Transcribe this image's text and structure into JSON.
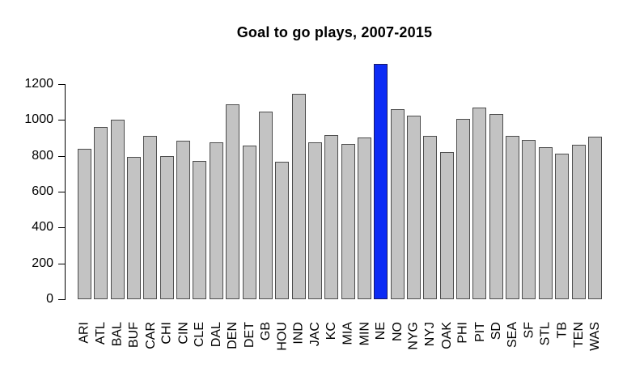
{
  "chart_data": {
    "type": "bar",
    "title": "Goal to go plays, 2007-2015",
    "categories": [
      "ARI",
      "ATL",
      "BAL",
      "BUF",
      "CAR",
      "CHI",
      "CIN",
      "CLE",
      "DAL",
      "DEN",
      "DET",
      "GB",
      "HOU",
      "IND",
      "JAC",
      "KC",
      "MIA",
      "MIN",
      "NE",
      "NO",
      "NYG",
      "NYJ",
      "OAK",
      "PHI",
      "PIT",
      "SD",
      "SEA",
      "SF",
      "STL",
      "TB",
      "TEN",
      "WAS"
    ],
    "values": [
      840,
      960,
      1000,
      795,
      910,
      800,
      885,
      770,
      875,
      1085,
      855,
      1045,
      765,
      1145,
      875,
      915,
      865,
      900,
      1315,
      1060,
      1025,
      910,
      820,
      1005,
      1070,
      1035,
      910,
      890,
      850,
      810,
      860,
      905
    ],
    "highlight_category": "NE",
    "highlight_index": 18,
    "yticks": [
      0,
      200,
      400,
      600,
      800,
      1000,
      1200
    ],
    "ylim": [
      0,
      1355
    ],
    "xlabel": "",
    "ylabel": "",
    "grid": false,
    "legend": "none",
    "x_tick_rotation_degrees": 90,
    "colors": {
      "bar_fill": "#c3c3c3",
      "bar_border": "#4d4d4d",
      "highlight_fill": "#0d2cf5",
      "highlight_border": "#1a1a66",
      "axis": "#000000",
      "background": "#ffffff",
      "text": "#000000"
    }
  }
}
